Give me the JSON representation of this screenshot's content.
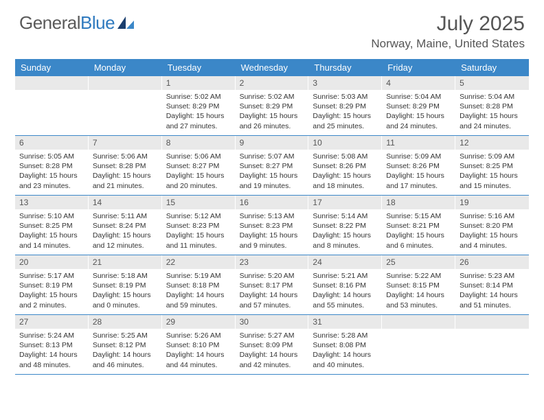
{
  "brand": {
    "part1": "General",
    "part2": "Blue"
  },
  "title": "July 2025",
  "location": "Norway, Maine, United States",
  "colors": {
    "header_bg": "#3b87c8",
    "daynum_bg": "#e9e9e9",
    "rule": "#3b87c8",
    "text": "#333333",
    "title_text": "#555555"
  },
  "dow": [
    "Sunday",
    "Monday",
    "Tuesday",
    "Wednesday",
    "Thursday",
    "Friday",
    "Saturday"
  ],
  "weeks": [
    [
      null,
      null,
      {
        "n": "1",
        "sr": "5:02 AM",
        "ss": "8:29 PM",
        "dl": "15 hours and 27 minutes."
      },
      {
        "n": "2",
        "sr": "5:02 AM",
        "ss": "8:29 PM",
        "dl": "15 hours and 26 minutes."
      },
      {
        "n": "3",
        "sr": "5:03 AM",
        "ss": "8:29 PM",
        "dl": "15 hours and 25 minutes."
      },
      {
        "n": "4",
        "sr": "5:04 AM",
        "ss": "8:29 PM",
        "dl": "15 hours and 24 minutes."
      },
      {
        "n": "5",
        "sr": "5:04 AM",
        "ss": "8:28 PM",
        "dl": "15 hours and 24 minutes."
      }
    ],
    [
      {
        "n": "6",
        "sr": "5:05 AM",
        "ss": "8:28 PM",
        "dl": "15 hours and 23 minutes."
      },
      {
        "n": "7",
        "sr": "5:06 AM",
        "ss": "8:28 PM",
        "dl": "15 hours and 21 minutes."
      },
      {
        "n": "8",
        "sr": "5:06 AM",
        "ss": "8:27 PM",
        "dl": "15 hours and 20 minutes."
      },
      {
        "n": "9",
        "sr": "5:07 AM",
        "ss": "8:27 PM",
        "dl": "15 hours and 19 minutes."
      },
      {
        "n": "10",
        "sr": "5:08 AM",
        "ss": "8:26 PM",
        "dl": "15 hours and 18 minutes."
      },
      {
        "n": "11",
        "sr": "5:09 AM",
        "ss": "8:26 PM",
        "dl": "15 hours and 17 minutes."
      },
      {
        "n": "12",
        "sr": "5:09 AM",
        "ss": "8:25 PM",
        "dl": "15 hours and 15 minutes."
      }
    ],
    [
      {
        "n": "13",
        "sr": "5:10 AM",
        "ss": "8:25 PM",
        "dl": "15 hours and 14 minutes."
      },
      {
        "n": "14",
        "sr": "5:11 AM",
        "ss": "8:24 PM",
        "dl": "15 hours and 12 minutes."
      },
      {
        "n": "15",
        "sr": "5:12 AM",
        "ss": "8:23 PM",
        "dl": "15 hours and 11 minutes."
      },
      {
        "n": "16",
        "sr": "5:13 AM",
        "ss": "8:23 PM",
        "dl": "15 hours and 9 minutes."
      },
      {
        "n": "17",
        "sr": "5:14 AM",
        "ss": "8:22 PM",
        "dl": "15 hours and 8 minutes."
      },
      {
        "n": "18",
        "sr": "5:15 AM",
        "ss": "8:21 PM",
        "dl": "15 hours and 6 minutes."
      },
      {
        "n": "19",
        "sr": "5:16 AM",
        "ss": "8:20 PM",
        "dl": "15 hours and 4 minutes."
      }
    ],
    [
      {
        "n": "20",
        "sr": "5:17 AM",
        "ss": "8:19 PM",
        "dl": "15 hours and 2 minutes."
      },
      {
        "n": "21",
        "sr": "5:18 AM",
        "ss": "8:19 PM",
        "dl": "15 hours and 0 minutes."
      },
      {
        "n": "22",
        "sr": "5:19 AM",
        "ss": "8:18 PM",
        "dl": "14 hours and 59 minutes."
      },
      {
        "n": "23",
        "sr": "5:20 AM",
        "ss": "8:17 PM",
        "dl": "14 hours and 57 minutes."
      },
      {
        "n": "24",
        "sr": "5:21 AM",
        "ss": "8:16 PM",
        "dl": "14 hours and 55 minutes."
      },
      {
        "n": "25",
        "sr": "5:22 AM",
        "ss": "8:15 PM",
        "dl": "14 hours and 53 minutes."
      },
      {
        "n": "26",
        "sr": "5:23 AM",
        "ss": "8:14 PM",
        "dl": "14 hours and 51 minutes."
      }
    ],
    [
      {
        "n": "27",
        "sr": "5:24 AM",
        "ss": "8:13 PM",
        "dl": "14 hours and 48 minutes."
      },
      {
        "n": "28",
        "sr": "5:25 AM",
        "ss": "8:12 PM",
        "dl": "14 hours and 46 minutes."
      },
      {
        "n": "29",
        "sr": "5:26 AM",
        "ss": "8:10 PM",
        "dl": "14 hours and 44 minutes."
      },
      {
        "n": "30",
        "sr": "5:27 AM",
        "ss": "8:09 PM",
        "dl": "14 hours and 42 minutes."
      },
      {
        "n": "31",
        "sr": "5:28 AM",
        "ss": "8:08 PM",
        "dl": "14 hours and 40 minutes."
      },
      null,
      null
    ]
  ],
  "labels": {
    "sunrise": "Sunrise:",
    "sunset": "Sunset:",
    "daylight": "Daylight:"
  }
}
